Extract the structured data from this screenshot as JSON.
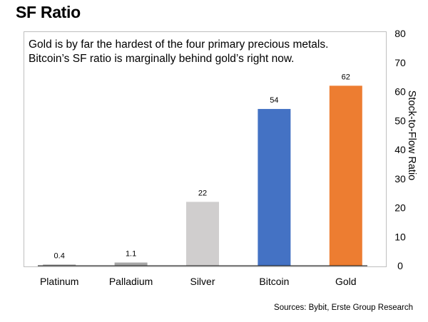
{
  "title": "SF Ratio",
  "subtitle": "Gold is by far the hardest of the four primary precious metals. Bitcoin’s SF ratio is marginally behind gold’s right now.",
  "source": "Sources: Bybit, Erste Group Research",
  "chart_data": {
    "type": "bar",
    "categories": [
      "Platinum",
      "Palladium",
      "Silver",
      "Bitcoin",
      "Gold"
    ],
    "values": [
      0.4,
      1.1,
      22,
      54,
      62
    ],
    "data_labels": [
      "0.4",
      "1.1",
      "22",
      "54",
      "62"
    ],
    "colors": [
      "#a6a6a6",
      "#a6a6a6",
      "#d0cece",
      "#4472c4",
      "#ed7d31"
    ],
    "ylabel": "Stock-to-Flow Ratio",
    "ylim": [
      0,
      80
    ],
    "yticks": [
      0,
      10,
      20,
      30,
      40,
      50,
      60,
      70,
      80
    ],
    "y_axis_side": "right",
    "grid": false
  }
}
